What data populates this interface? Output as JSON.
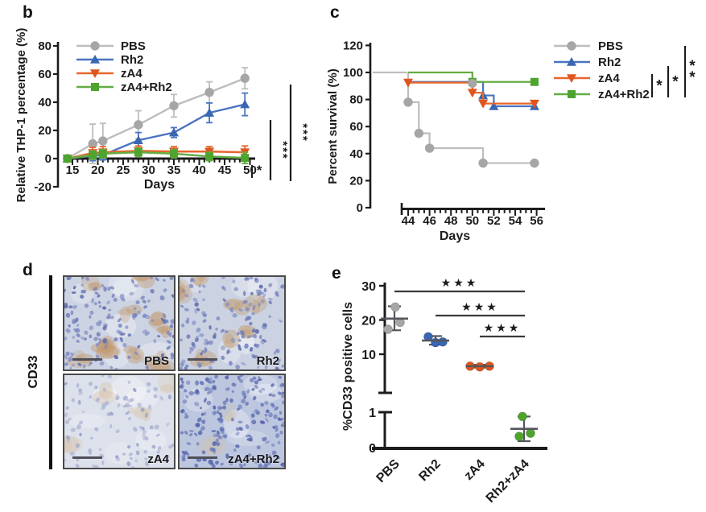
{
  "panel_labels": {
    "b": "b",
    "c": "c",
    "d": "d",
    "e": "e"
  },
  "colors": {
    "PBS": "#a6a6a6",
    "PBS_line": "#bdbdbd",
    "Rh2": "#3a67b1",
    "Rh2_line": "#4a74c0",
    "zA4": "#e0551d",
    "zA4_line": "#e8662c",
    "zA4+Rh2": "#4fa32f",
    "zA4+Rh2_line": "#63ad43",
    "Rh2+zA4": "#4fa32f",
    "axis": "#1c1c1c",
    "error": "#55555c"
  },
  "chart_data": [
    {
      "id": "b",
      "type": "line",
      "ylabel": "Relative THP-1 percentage (%)",
      "xlabel": "Days",
      "ylim": [
        -20,
        80
      ],
      "yticks": [
        80,
        60,
        40,
        20,
        0,
        -20
      ],
      "xticks": [
        15,
        20,
        25,
        30,
        35,
        40,
        45,
        50
      ],
      "x_minor_step": 1,
      "xrange": [
        14,
        50
      ],
      "x": [
        14,
        19,
        21,
        28,
        35,
        42,
        49
      ],
      "series": [
        {
          "name": "PBS",
          "marker": "circle",
          "values": [
            0,
            10.5,
            12.5,
            24,
            37.5,
            47,
            57
          ],
          "errors": [
            1.5,
            14,
            12.5,
            10,
            8,
            7.5,
            7.5
          ]
        },
        {
          "name": "Rh2",
          "marker": "triangle-up",
          "values": [
            0,
            2,
            2.5,
            13,
            18.5,
            32.5,
            38.5
          ],
          "errors": [
            1.5,
            3.5,
            3.5,
            5.5,
            3.5,
            7,
            8
          ]
        },
        {
          "name": "zA4",
          "marker": "triangle-down",
          "values": [
            0,
            4,
            4.5,
            5.5,
            5,
            5,
            4.5
          ],
          "errors": [
            1.5,
            4,
            4,
            3.5,
            3.5,
            3.5,
            4.5
          ]
        },
        {
          "name": "zA4+Rh2",
          "marker": "square",
          "values": [
            0,
            2.5,
            3.5,
            4.5,
            3.5,
            1.5,
            0.5
          ],
          "errors": [
            1.5,
            3,
            3,
            3,
            3,
            3,
            4
          ]
        }
      ],
      "significance": [
        {
          "label": "*",
          "style": "inner-bracket"
        },
        {
          "label": "***",
          "style": "tall-bar"
        },
        {
          "label": "***",
          "style": "taller-bar"
        }
      ]
    },
    {
      "id": "c",
      "type": "step",
      "ylabel": "Percent survival (%)",
      "xlabel": "Days",
      "ylim": [
        0,
        120
      ],
      "yticks": [
        120,
        100,
        80,
        60,
        40,
        20,
        0
      ],
      "xticks": [
        44,
        46,
        48,
        50,
        52,
        54,
        56
      ],
      "x_minor_step": 0.5,
      "lead_line": {
        "series": "PBS",
        "value": 100
      },
      "series": [
        {
          "name": "PBS",
          "marker": "circle",
          "steps": [
            [
              44,
              100
            ],
            [
              44,
              78
            ],
            [
              45,
              78
            ],
            [
              45,
              55
            ],
            [
              46,
              55
            ],
            [
              46,
              44
            ],
            [
              51,
              44
            ],
            [
              51,
              33
            ],
            [
              55.8,
              33
            ]
          ],
          "markers": [
            [
              44,
              78
            ],
            [
              45,
              55
            ],
            [
              46,
              44
            ],
            [
              51,
              33
            ],
            [
              55.8,
              33
            ]
          ]
        },
        {
          "name": "Rh2",
          "marker": "triangle-up",
          "steps": [
            [
              44,
              93
            ],
            [
              51,
              93
            ],
            [
              51,
              83
            ],
            [
              52,
              83
            ],
            [
              52,
              75
            ],
            [
              55.8,
              75
            ]
          ],
          "markers": [
            [
              51,
              83
            ],
            [
              52,
              75
            ],
            [
              55.8,
              75
            ]
          ]
        },
        {
          "name": "zA4",
          "marker": "triangle-down",
          "steps": [
            [
              44,
              92.5
            ],
            [
              50,
              92.5
            ],
            [
              50,
              85
            ],
            [
              51,
              85
            ],
            [
              51,
              77
            ],
            [
              55.8,
              77
            ]
          ],
          "markers": [
            [
              44,
              92.5
            ],
            [
              50,
              85
            ],
            [
              51,
              77
            ],
            [
              55.8,
              77
            ]
          ]
        },
        {
          "name": "zA4+Rh2",
          "marker": "square",
          "steps": [
            [
              44,
              100
            ],
            [
              50,
              100
            ],
            [
              50,
              93
            ],
            [
              55.8,
              93
            ]
          ],
          "markers": [
            [
              50,
              93
            ],
            [
              55.8,
              93
            ]
          ]
        }
      ],
      "overlap_marker": {
        "series": "PBS",
        "day": 50,
        "value": 92
      },
      "significance": [
        {
          "label": "*"
        },
        {
          "label": "*"
        },
        {
          "label": "**"
        }
      ]
    },
    {
      "id": "e",
      "type": "scatter",
      "ylabel": "%CD33 positive cells",
      "axis_break": {
        "upper_ticks": [
          30,
          20,
          10
        ],
        "lower_ticks": [
          1,
          0
        ]
      },
      "categories": [
        "PBS",
        "Rh2",
        "zA4",
        "Rh2+zA4"
      ],
      "groups": [
        {
          "name": "PBS",
          "points": [
            23.8,
            19.3,
            17.3
          ],
          "offsets": [
            1,
            7,
            -8
          ],
          "mean": 20.4,
          "err_low": 17,
          "err_high": 24
        },
        {
          "name": "Rh2",
          "points": [
            15.1,
            13.4,
            13.6
          ],
          "offsets": [
            -9,
            0,
            9
          ],
          "mean": 14,
          "err_low": 12.8,
          "err_high": 15.3
        },
        {
          "name": "zA4",
          "points": [
            6.5,
            6.3,
            6.5
          ],
          "offsets": [
            -12,
            0,
            12
          ],
          "mean": 6.5,
          "err_low": 6.1,
          "err_high": 6.9
        },
        {
          "name": "Rh2+zA4",
          "points": [
            0.88,
            0.33,
            0.42
          ],
          "offsets": [
            -2,
            -6,
            8
          ],
          "mean": 0.54,
          "err_low": 0.2,
          "err_high": 0.88
        }
      ],
      "significance": [
        {
          "from": 0,
          "to": 3,
          "label": "***"
        },
        {
          "from": 1,
          "to": 3,
          "label": "***"
        },
        {
          "from": 2,
          "to": 3,
          "label": "***"
        }
      ]
    }
  ],
  "panel_d": {
    "row_label": "CD33",
    "images": [
      {
        "label": "PBS"
      },
      {
        "label": "Rh2"
      },
      {
        "label": "zA4"
      },
      {
        "label": "zA4+Rh2"
      }
    ]
  }
}
